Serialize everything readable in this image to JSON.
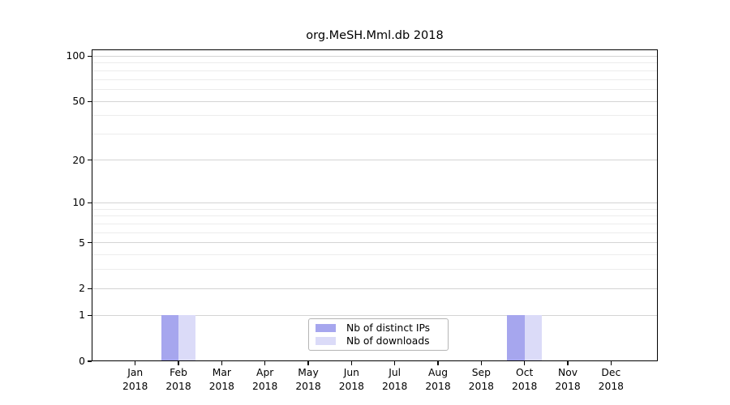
{
  "chart_data": {
    "type": "bar",
    "title": "org.MeSH.Mml.db 2018",
    "months": [
      "Jan",
      "Feb",
      "Mar",
      "Apr",
      "May",
      "Jun",
      "Jul",
      "Aug",
      "Sep",
      "Oct",
      "Nov",
      "Dec"
    ],
    "year_label": "2018",
    "series": [
      {
        "name": "Nb of distinct IPs",
        "color": "#a6a6ee",
        "values": [
          0,
          1,
          0,
          0,
          0,
          0,
          0,
          0,
          0,
          1,
          0,
          0
        ]
      },
      {
        "name": "Nb of downloads",
        "color": "#dbdbf8",
        "values": [
          0,
          1,
          0,
          0,
          0,
          0,
          0,
          0,
          0,
          1,
          0,
          0
        ]
      }
    ],
    "y_scale": "log1p",
    "ylim": [
      0,
      110
    ],
    "y_ticks_major": [
      0,
      1,
      2,
      5,
      10,
      20,
      50,
      100
    ],
    "y_gridlines_minor": [
      3,
      4,
      6,
      7,
      8,
      9,
      30,
      40,
      60,
      70,
      80,
      90
    ],
    "grid": true,
    "legend": {
      "position": "bottom-center",
      "entries": [
        "Nb of distinct IPs",
        "Nb of downloads"
      ]
    },
    "colors": {
      "background": "#ffffff",
      "axis": "#000000",
      "grid_major": "#d4d4d4",
      "grid_minor": "#ececec",
      "legend_border": "#b5b5b5"
    }
  }
}
